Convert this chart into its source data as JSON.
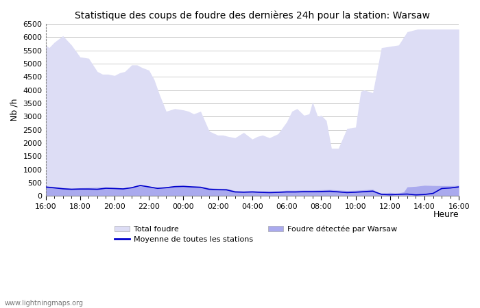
{
  "title": "Statistique des coups de foudre des dernières 24h pour la station: Warsaw",
  "ylabel": "Nb /h",
  "xlabel": "Heure",
  "watermark": "www.lightningmaps.org",
  "xlim": [
    0,
    24
  ],
  "ylim": [
    0,
    6500
  ],
  "yticks": [
    0,
    500,
    1000,
    1500,
    2000,
    2500,
    3000,
    3500,
    4000,
    4500,
    5000,
    5500,
    6000,
    6500
  ],
  "xtick_labels": [
    "16:00",
    "18:00",
    "20:00",
    "22:00",
    "00:00",
    "02:00",
    "04:00",
    "06:00",
    "08:00",
    "10:00",
    "12:00",
    "14:00",
    "16:00"
  ],
  "xtick_positions": [
    0,
    2,
    4,
    6,
    8,
    10,
    12,
    14,
    16,
    18,
    20,
    22,
    24
  ],
  "color_total": "#ddddf5",
  "color_warsaw": "#aaaaee",
  "color_mean": "#0000cc",
  "total_x": [
    0,
    0.2,
    0.5,
    1.0,
    1.5,
    2.0,
    2.5,
    3.0,
    3.3,
    3.6,
    4.0,
    4.3,
    4.6,
    5.0,
    5.3,
    5.6,
    6.0,
    6.3,
    6.6,
    7.0,
    7.5,
    8.0,
    8.3,
    8.6,
    9.0,
    9.5,
    10.0,
    10.3,
    10.6,
    11.0,
    11.5,
    12.0,
    12.3,
    12.6,
    13.0,
    13.5,
    14.0,
    14.3,
    14.6,
    15.0,
    15.3,
    15.5,
    15.8,
    16.0,
    16.3,
    16.6,
    17.0,
    17.5,
    18.0,
    18.3,
    18.5,
    19.0,
    19.5,
    20.0,
    20.5,
    21.0,
    21.3,
    21.6,
    22.0,
    22.5,
    23.0,
    23.5,
    24.0
  ],
  "total_y": [
    5700,
    5600,
    5800,
    6050,
    5700,
    5250,
    5200,
    4700,
    4600,
    4600,
    4550,
    4650,
    4700,
    4950,
    4950,
    4850,
    4750,
    4400,
    3850,
    3200,
    3300,
    3250,
    3200,
    3100,
    3200,
    2450,
    2300,
    2300,
    2250,
    2200,
    2400,
    2150,
    2250,
    2300,
    2200,
    2350,
    2800,
    3200,
    3300,
    3050,
    3100,
    3550,
    3000,
    3050,
    2850,
    1800,
    1800,
    2550,
    2600,
    3950,
    4000,
    3900,
    5600,
    5650,
    5700,
    6200,
    6250,
    6300,
    6300,
    6300,
    6300,
    6300,
    6300
  ],
  "warsaw_x": [
    0,
    0.5,
    1.0,
    1.5,
    2.0,
    2.5,
    3.0,
    3.5,
    4.0,
    4.5,
    5.0,
    5.5,
    6.0,
    6.5,
    7.0,
    7.5,
    8.0,
    8.5,
    9.0,
    9.5,
    10.0,
    10.5,
    11.0,
    11.5,
    12.0,
    12.5,
    13.0,
    13.5,
    14.0,
    14.5,
    15.0,
    15.5,
    16.0,
    16.5,
    17.0,
    17.5,
    18.0,
    18.5,
    19.0,
    19.3,
    19.5,
    19.8,
    20.0,
    20.3,
    20.5,
    20.8,
    21.0,
    21.5,
    22.0,
    22.5,
    23.0,
    23.5,
    24.0
  ],
  "warsaw_y": [
    380,
    360,
    320,
    300,
    310,
    320,
    330,
    340,
    320,
    300,
    350,
    430,
    370,
    320,
    350,
    390,
    400,
    380,
    370,
    310,
    290,
    285,
    205,
    195,
    205,
    195,
    185,
    195,
    215,
    215,
    225,
    225,
    235,
    245,
    225,
    205,
    215,
    235,
    255,
    125,
    115,
    115,
    135,
    105,
    115,
    155,
    345,
    365,
    405,
    395,
    390,
    390,
    400
  ],
  "mean_x": [
    0,
    0.5,
    1.0,
    1.5,
    2.0,
    2.5,
    3.0,
    3.5,
    4.0,
    4.5,
    5.0,
    5.5,
    6.0,
    6.5,
    7.0,
    7.5,
    8.0,
    8.5,
    9.0,
    9.5,
    10.0,
    10.5,
    11.0,
    11.5,
    12.0,
    12.5,
    13.0,
    13.5,
    14.0,
    14.5,
    15.0,
    15.5,
    16.0,
    16.5,
    17.0,
    17.5,
    18.0,
    18.5,
    19.0,
    19.5,
    20.0,
    20.5,
    21.0,
    21.5,
    22.0,
    22.5,
    23.0,
    23.5,
    24.0
  ],
  "mean_y": [
    340,
    310,
    275,
    255,
    265,
    265,
    255,
    295,
    285,
    270,
    315,
    400,
    345,
    290,
    315,
    355,
    365,
    345,
    330,
    255,
    240,
    235,
    155,
    145,
    155,
    140,
    130,
    140,
    155,
    155,
    165,
    165,
    170,
    180,
    158,
    130,
    145,
    165,
    185,
    65,
    50,
    65,
    75,
    45,
    60,
    100,
    285,
    305,
    345
  ]
}
